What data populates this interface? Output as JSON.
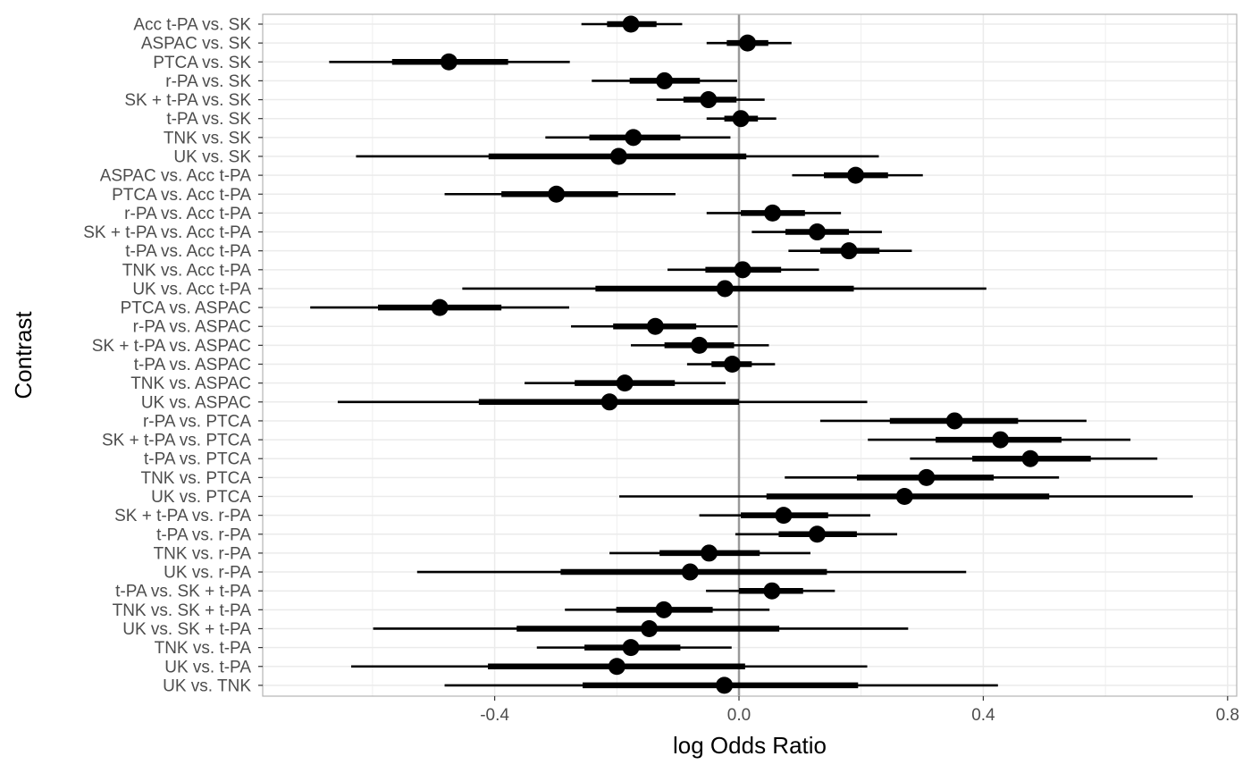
{
  "chart_data": {
    "type": "interval",
    "xlabel": "log Odds Ratio",
    "ylabel": "Contrast",
    "xlim": [
      -0.77,
      0.8
    ],
    "x_ticks": [
      -0.4,
      0.0,
      0.4,
      0.8
    ],
    "x_tick_labels": [
      "-0.4",
      "0.0",
      "0.4",
      "0.8"
    ],
    "reference_line": 0.0,
    "grid": true,
    "colors": {
      "marks": "#000000",
      "reference_line": "#999999",
      "grid": "#ebebeb",
      "panel_border": "#b3b3b3"
    },
    "rows": [
      {
        "label": "Acc t-PA vs. SK",
        "estimate": -0.177,
        "inner": [
          -0.216,
          -0.135
        ],
        "outer": [
          -0.258,
          -0.093
        ]
      },
      {
        "label": "ASPAC vs. SK",
        "estimate": 0.014,
        "inner": [
          -0.02,
          0.048
        ],
        "outer": [
          -0.053,
          0.086
        ]
      },
      {
        "label": "PTCA vs. SK",
        "estimate": -0.475,
        "inner": [
          -0.568,
          -0.378
        ],
        "outer": [
          -0.671,
          -0.277
        ]
      },
      {
        "label": "r-PA vs. SK",
        "estimate": -0.122,
        "inner": [
          -0.179,
          -0.064
        ],
        "outer": [
          -0.241,
          -0.003
        ]
      },
      {
        "label": "SK + t-PA vs. SK",
        "estimate": -0.05,
        "inner": [
          -0.091,
          -0.004
        ],
        "outer": [
          -0.135,
          0.042
        ]
      },
      {
        "label": "t-PA vs. SK",
        "estimate": 0.003,
        "inner": [
          -0.024,
          0.031
        ],
        "outer": [
          -0.053,
          0.061
        ]
      },
      {
        "label": "TNK vs. SK",
        "estimate": -0.173,
        "inner": [
          -0.245,
          -0.096
        ],
        "outer": [
          -0.317,
          -0.014
        ]
      },
      {
        "label": "UK vs. SK",
        "estimate": -0.197,
        "inner": [
          -0.41,
          0.012
        ],
        "outer": [
          -0.627,
          0.229
        ]
      },
      {
        "label": "ASPAC vs. Acc t-PA",
        "estimate": 0.191,
        "inner": [
          0.139,
          0.244
        ],
        "outer": [
          0.087,
          0.301
        ]
      },
      {
        "label": "PTCA vs. Acc t-PA",
        "estimate": -0.299,
        "inner": [
          -0.389,
          -0.198
        ],
        "outer": [
          -0.482,
          -0.104
        ]
      },
      {
        "label": "r-PA vs. Acc t-PA",
        "estimate": 0.055,
        "inner": [
          0.003,
          0.108
        ],
        "outer": [
          -0.053,
          0.167
        ]
      },
      {
        "label": "SK + t-PA vs. Acc t-PA",
        "estimate": 0.128,
        "inner": [
          0.076,
          0.18
        ],
        "outer": [
          0.021,
          0.234
        ]
      },
      {
        "label": "t-PA vs. Acc t-PA",
        "estimate": 0.18,
        "inner": [
          0.133,
          0.23
        ],
        "outer": [
          0.081,
          0.283
        ]
      },
      {
        "label": "TNK vs. Acc t-PA",
        "estimate": 0.006,
        "inner": [
          -0.055,
          0.069
        ],
        "outer": [
          -0.117,
          0.131
        ]
      },
      {
        "label": "UK vs. Acc t-PA",
        "estimate": -0.023,
        "inner": [
          -0.235,
          0.188
        ],
        "outer": [
          -0.453,
          0.405
        ]
      },
      {
        "label": "PTCA vs. ASPAC",
        "estimate": -0.49,
        "inner": [
          -0.591,
          -0.389
        ],
        "outer": [
          -0.702,
          -0.278
        ]
      },
      {
        "label": "r-PA vs. ASPAC",
        "estimate": -0.137,
        "inner": [
          -0.206,
          -0.07
        ],
        "outer": [
          -0.275,
          -0.002
        ]
      },
      {
        "label": "SK + t-PA vs. ASPAC",
        "estimate": -0.065,
        "inner": [
          -0.122,
          -0.008
        ],
        "outer": [
          -0.177,
          0.049
        ]
      },
      {
        "label": "t-PA vs. ASPAC",
        "estimate": -0.011,
        "inner": [
          -0.045,
          0.021
        ],
        "outer": [
          -0.085,
          0.059
        ]
      },
      {
        "label": "TNK vs. ASPAC",
        "estimate": -0.187,
        "inner": [
          -0.269,
          -0.105
        ],
        "outer": [
          -0.351,
          -0.022
        ]
      },
      {
        "label": "UK vs. ASPAC",
        "estimate": -0.212,
        "inner": [
          -0.426,
          0.0
        ],
        "outer": [
          -0.657,
          0.21
        ]
      },
      {
        "label": "r-PA vs. PTCA",
        "estimate": 0.353,
        "inner": [
          0.247,
          0.457
        ],
        "outer": [
          0.133,
          0.569
        ]
      },
      {
        "label": "SK + t-PA vs. PTCA",
        "estimate": 0.428,
        "inner": [
          0.322,
          0.528
        ],
        "outer": [
          0.211,
          0.641
        ]
      },
      {
        "label": "t-PA vs. PTCA",
        "estimate": 0.477,
        "inner": [
          0.382,
          0.576
        ],
        "outer": [
          0.28,
          0.685
        ]
      },
      {
        "label": "TNK vs. PTCA",
        "estimate": 0.307,
        "inner": [
          0.193,
          0.417
        ],
        "outer": [
          0.075,
          0.524
        ]
      },
      {
        "label": "UK vs. PTCA",
        "estimate": 0.271,
        "inner": [
          0.045,
          0.508
        ],
        "outer": [
          -0.196,
          0.743
        ]
      },
      {
        "label": "SK + t-PA vs. r-PA",
        "estimate": 0.073,
        "inner": [
          0.003,
          0.146
        ],
        "outer": [
          -0.065,
          0.215
        ]
      },
      {
        "label": "t-PA vs. r-PA",
        "estimate": 0.128,
        "inner": [
          0.065,
          0.193
        ],
        "outer": [
          -0.006,
          0.259
        ]
      },
      {
        "label": "TNK vs. r-PA",
        "estimate": -0.049,
        "inner": [
          -0.13,
          0.034
        ],
        "outer": [
          -0.212,
          0.117
        ]
      },
      {
        "label": "UK vs. r-PA",
        "estimate": -0.08,
        "inner": [
          -0.292,
          0.144
        ],
        "outer": [
          -0.527,
          0.372
        ]
      },
      {
        "label": "t-PA vs. SK + t-PA",
        "estimate": 0.054,
        "inner": [
          0.0,
          0.105
        ],
        "outer": [
          -0.054,
          0.157
        ]
      },
      {
        "label": "TNK vs. SK + t-PA",
        "estimate": -0.123,
        "inner": [
          -0.201,
          -0.043
        ],
        "outer": [
          -0.285,
          0.05
        ]
      },
      {
        "label": "UK vs. SK + t-PA",
        "estimate": -0.147,
        "inner": [
          -0.364,
          0.066
        ],
        "outer": [
          -0.599,
          0.277
        ]
      },
      {
        "label": "TNK vs. t-PA",
        "estimate": -0.177,
        "inner": [
          -0.253,
          -0.096
        ],
        "outer": [
          -0.331,
          -0.012
        ]
      },
      {
        "label": "UK vs. t-PA",
        "estimate": -0.2,
        "inner": [
          -0.411,
          0.01
        ],
        "outer": [
          -0.635,
          0.21
        ]
      },
      {
        "label": "UK vs. TNK",
        "estimate": -0.024,
        "inner": [
          -0.256,
          0.195
        ],
        "outer": [
          -0.482,
          0.424
        ]
      }
    ]
  }
}
